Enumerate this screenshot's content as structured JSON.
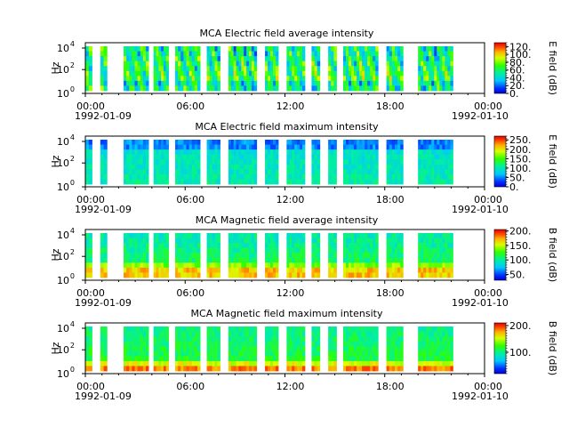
{
  "figure": {
    "time_ticks": [
      "00:00",
      "06:00",
      "12:00",
      "18:00"
    ],
    "start_date": "1992-01-09",
    "end_date": "1992-01-10",
    "end_label": "00:00"
  },
  "chart_data": [
    {
      "type": "heatmap",
      "title": "MCA  Electric field average intensity",
      "ylabel": "Hz",
      "yscale": "log",
      "ytick_labels": [
        "10^0",
        "10^2",
        "10^4"
      ],
      "xlim": [
        "1992-01-09 00:00",
        "1992-01-10 00:00"
      ],
      "colorbar": {
        "label": "E field (dB)",
        "ticks": [
          "0.",
          "20.",
          "40.",
          "60.",
          "80.",
          "100.",
          "120."
        ],
        "range": [
          0,
          130
        ]
      },
      "data_segments_hours": [
        [
          0.0,
          0.4
        ],
        [
          0.9,
          1.3
        ],
        [
          2.3,
          3.8
        ],
        [
          4.1,
          5.0
        ],
        [
          5.4,
          6.9
        ],
        [
          7.3,
          8.1
        ],
        [
          8.6,
          10.3
        ],
        [
          10.8,
          11.6
        ],
        [
          12.1,
          13.2
        ],
        [
          13.6,
          14.1
        ],
        [
          14.6,
          15.1
        ],
        [
          15.5,
          17.6
        ],
        [
          18.1,
          19.1
        ],
        [
          20.0,
          22.1
        ]
      ],
      "palette": "E_avg"
    },
    {
      "type": "heatmap",
      "title": "MCA  Electric field maximum intensity",
      "ylabel": "Hz",
      "yscale": "log",
      "ytick_labels": [
        "10^0",
        "10^2",
        "10^4"
      ],
      "xlim": [
        "1992-01-09 00:00",
        "1992-01-10 00:00"
      ],
      "colorbar": {
        "label": "E field (dB)",
        "ticks": [
          "0.",
          "50.",
          "100.",
          "150.",
          "200.",
          "250."
        ],
        "range": [
          0,
          270
        ]
      },
      "data_segments_hours": [
        [
          0.0,
          0.4
        ],
        [
          0.9,
          1.3
        ],
        [
          2.3,
          3.8
        ],
        [
          4.1,
          5.0
        ],
        [
          5.4,
          6.9
        ],
        [
          7.3,
          8.1
        ],
        [
          8.6,
          10.3
        ],
        [
          10.8,
          11.6
        ],
        [
          12.1,
          13.2
        ],
        [
          13.6,
          14.1
        ],
        [
          14.6,
          15.1
        ],
        [
          15.5,
          17.6
        ],
        [
          18.1,
          19.1
        ],
        [
          20.0,
          22.1
        ]
      ],
      "palette": "E_max"
    },
    {
      "type": "heatmap",
      "title": "MCA  Magnetic field average intensity",
      "ylabel": "Hz",
      "yscale": "log",
      "ytick_labels": [
        "10^0",
        "10^2",
        "10^4"
      ],
      "xlim": [
        "1992-01-09 00:00",
        "1992-01-10 00:00"
      ],
      "colorbar": {
        "label": "B field (dB)",
        "ticks": [
          "50.",
          "100.",
          "150.",
          "200."
        ],
        "range": [
          30,
          205
        ]
      },
      "data_segments_hours": [
        [
          0.0,
          0.4
        ],
        [
          0.9,
          1.3
        ],
        [
          2.3,
          3.8
        ],
        [
          4.1,
          5.0
        ],
        [
          5.4,
          6.9
        ],
        [
          7.3,
          8.1
        ],
        [
          8.6,
          10.3
        ],
        [
          10.8,
          11.6
        ],
        [
          12.1,
          13.2
        ],
        [
          13.6,
          14.1
        ],
        [
          14.6,
          15.1
        ],
        [
          15.5,
          17.6
        ],
        [
          18.1,
          19.1
        ],
        [
          20.0,
          22.1
        ]
      ],
      "palette": "B_avg"
    },
    {
      "type": "heatmap",
      "title": "MCA  Magnetic field maximum intensity",
      "ylabel": "Hz",
      "yscale": "log",
      "ytick_labels": [
        "10^0",
        "10^2",
        "10^4"
      ],
      "xlim": [
        "1992-01-09 00:00",
        "1992-01-10 00:00"
      ],
      "colorbar": {
        "label": "B field (dB)",
        "ticks": [
          "100.",
          "200."
        ],
        "range": [
          20,
          210
        ]
      },
      "data_segments_hours": [
        [
          0.0,
          0.4
        ],
        [
          0.9,
          1.3
        ],
        [
          2.3,
          3.8
        ],
        [
          4.1,
          5.0
        ],
        [
          5.4,
          6.9
        ],
        [
          7.3,
          8.1
        ],
        [
          8.6,
          10.3
        ],
        [
          10.8,
          11.6
        ],
        [
          12.1,
          13.2
        ],
        [
          13.6,
          14.1
        ],
        [
          14.6,
          15.1
        ],
        [
          15.5,
          17.6
        ],
        [
          18.1,
          19.1
        ],
        [
          20.0,
          22.1
        ]
      ],
      "palette": "B_max"
    }
  ]
}
